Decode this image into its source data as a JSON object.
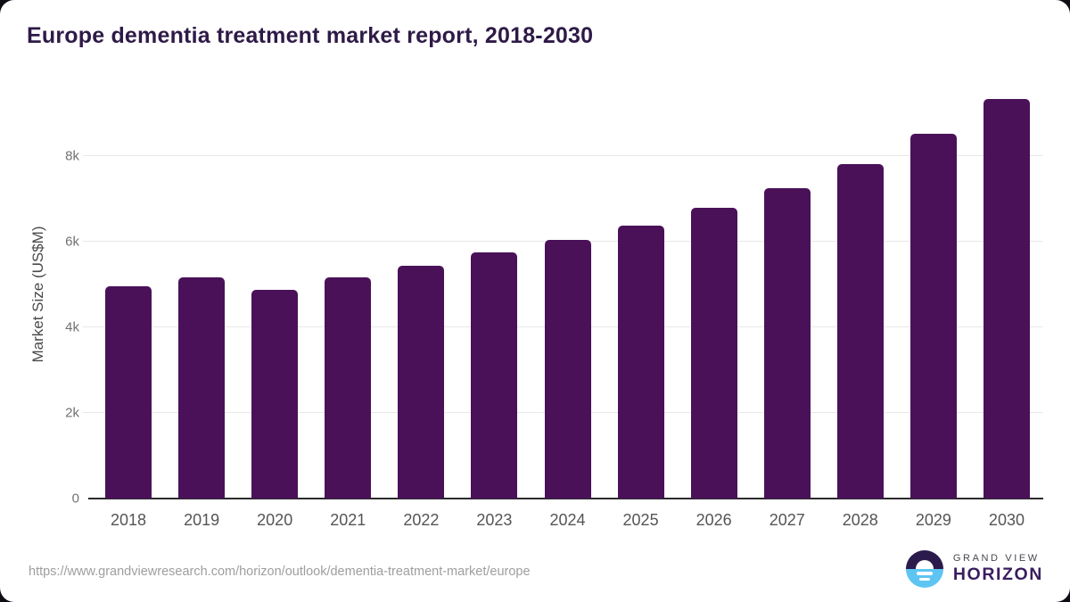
{
  "title": "Europe dementia treatment market report, 2018-2030",
  "source_url": "https://www.grandviewresearch.com/horizon/outlook/dementia-treatment-market/europe",
  "logo": {
    "name": "Grand View Horizon",
    "line_top": "GRAND VIEW",
    "line_bottom": "HORIZON"
  },
  "colors": {
    "bar": "#4a1159",
    "title_text": "#2e1a47",
    "gridline": "#e8e8e8",
    "axis_line": "#2b2b2b",
    "ytick_label": "#717171",
    "xtick_label": "#555555",
    "url_text": "#9e9e9e",
    "logo_blue": "#5ec5f2",
    "logo_dark_purple": "#2b1b4d",
    "logo_horizon_text": "#3b1d5e",
    "page_background": "#0d0d14"
  },
  "chart_data": {
    "type": "bar",
    "title": "Europe dementia treatment market report, 2018-2030",
    "categories": [
      "2018",
      "2019",
      "2020",
      "2021",
      "2022",
      "2023",
      "2024",
      "2025",
      "2026",
      "2027",
      "2028",
      "2029",
      "2030"
    ],
    "values": [
      4950,
      5160,
      4880,
      5160,
      5440,
      5750,
      6040,
      6380,
      6780,
      7250,
      7820,
      8510,
      9330
    ],
    "xlabel": "",
    "ylabel": "Market Size (US$M)",
    "ylim": [
      0,
      9560
    ],
    "yticks": [
      0,
      2000,
      4000,
      6000,
      8000
    ],
    "ytick_labels": [
      "0",
      "2k",
      "4k",
      "6k",
      "8k"
    ],
    "grid": true,
    "legend": false,
    "bar_color": "#4a1159"
  }
}
